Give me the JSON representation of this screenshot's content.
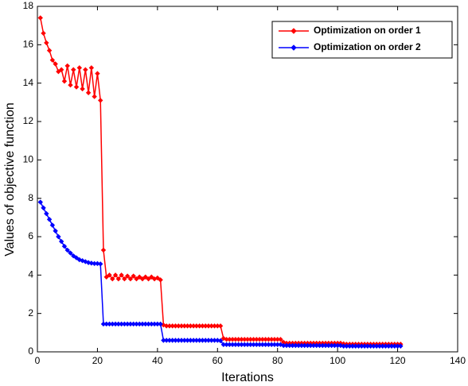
{
  "chart_data": {
    "type": "line",
    "xlabel": "Iterations",
    "ylabel": "Values of objective function",
    "x": [
      1,
      2,
      3,
      4,
      5,
      6,
      7,
      8,
      9,
      10,
      11,
      12,
      13,
      14,
      15,
      16,
      17,
      18,
      19,
      20,
      21,
      22,
      23,
      24,
      25,
      26,
      27,
      28,
      29,
      30,
      31,
      32,
      33,
      34,
      35,
      36,
      37,
      38,
      39,
      40,
      41,
      42,
      43,
      44,
      45,
      46,
      47,
      48,
      49,
      50,
      51,
      52,
      53,
      54,
      55,
      56,
      57,
      58,
      59,
      60,
      61,
      62,
      63,
      64,
      65,
      66,
      67,
      68,
      69,
      70,
      71,
      72,
      73,
      74,
      75,
      76,
      77,
      78,
      79,
      80,
      81,
      82,
      83,
      84,
      85,
      86,
      87,
      88,
      89,
      90,
      91,
      92,
      93,
      94,
      95,
      96,
      97,
      98,
      99,
      100,
      101,
      102,
      103,
      104,
      105,
      106,
      107,
      108,
      109,
      110,
      111,
      112,
      113,
      114,
      115,
      116,
      117,
      118,
      119,
      120,
      121
    ],
    "series": [
      {
        "name": "Optimization on order 1",
        "color": "#ff0000",
        "values": [
          17.4,
          16.6,
          16.1,
          15.7,
          15.2,
          15,
          14.6,
          14.7,
          14.1,
          14.9,
          13.9,
          14.7,
          13.8,
          14.8,
          13.7,
          14.7,
          13.5,
          14.8,
          13.3,
          14.5,
          13.1,
          5.3,
          3.9,
          4,
          3.8,
          4,
          3.8,
          4,
          3.8,
          3.95,
          3.8,
          3.95,
          3.8,
          3.9,
          3.8,
          3.9,
          3.8,
          3.9,
          3.8,
          3.85,
          3.75,
          1.4,
          1.35,
          1.35,
          1.35,
          1.35,
          1.35,
          1.35,
          1.35,
          1.35,
          1.35,
          1.35,
          1.35,
          1.35,
          1.35,
          1.35,
          1.35,
          1.35,
          1.35,
          1.35,
          1.35,
          0.7,
          0.65,
          0.65,
          0.65,
          0.65,
          0.65,
          0.65,
          0.65,
          0.65,
          0.65,
          0.65,
          0.65,
          0.65,
          0.65,
          0.65,
          0.65,
          0.65,
          0.65,
          0.65,
          0.65,
          0.5,
          0.45,
          0.45,
          0.45,
          0.45,
          0.45,
          0.45,
          0.45,
          0.45,
          0.45,
          0.45,
          0.45,
          0.45,
          0.45,
          0.45,
          0.45,
          0.45,
          0.45,
          0.45,
          0.45,
          0.42,
          0.4,
          0.4,
          0.4,
          0.4,
          0.4,
          0.4,
          0.4,
          0.4,
          0.4,
          0.4,
          0.4,
          0.4,
          0.4,
          0.4,
          0.4,
          0.4,
          0.4,
          0.4,
          0.4
        ]
      },
      {
        "name": "Optimization on order 2",
        "color": "#0000ff",
        "values": [
          7.8,
          7.5,
          7.2,
          6.9,
          6.6,
          6.3,
          6,
          5.75,
          5.5,
          5.3,
          5.15,
          5,
          4.9,
          4.8,
          4.75,
          4.7,
          4.65,
          4.62,
          4.6,
          4.6,
          4.58,
          1.45,
          1.45,
          1.45,
          1.45,
          1.45,
          1.45,
          1.45,
          1.45,
          1.45,
          1.45,
          1.45,
          1.45,
          1.45,
          1.45,
          1.45,
          1.45,
          1.45,
          1.45,
          1.45,
          1.45,
          0.6,
          0.6,
          0.6,
          0.6,
          0.6,
          0.6,
          0.6,
          0.6,
          0.6,
          0.6,
          0.6,
          0.6,
          0.6,
          0.6,
          0.6,
          0.6,
          0.6,
          0.6,
          0.6,
          0.58,
          0.38,
          0.38,
          0.38,
          0.38,
          0.38,
          0.38,
          0.38,
          0.38,
          0.38,
          0.38,
          0.38,
          0.38,
          0.38,
          0.38,
          0.38,
          0.38,
          0.38,
          0.38,
          0.38,
          0.38,
          0.33,
          0.33,
          0.33,
          0.33,
          0.33,
          0.33,
          0.33,
          0.33,
          0.33,
          0.33,
          0.33,
          0.33,
          0.33,
          0.33,
          0.33,
          0.33,
          0.33,
          0.33,
          0.33,
          0.33,
          0.3,
          0.3,
          0.3,
          0.3,
          0.3,
          0.3,
          0.3,
          0.3,
          0.3,
          0.3,
          0.3,
          0.3,
          0.3,
          0.3,
          0.3,
          0.3,
          0.3,
          0.3,
          0.3,
          0.3
        ]
      }
    ],
    "xlim": [
      0,
      140
    ],
    "xticks": [
      0,
      20,
      40,
      60,
      80,
      100,
      120,
      140
    ],
    "ylim": [
      0,
      18
    ],
    "yticks": [
      0,
      2,
      4,
      6,
      8,
      10,
      12,
      14,
      16,
      18
    ],
    "legend": "upper right",
    "grid": false
  }
}
